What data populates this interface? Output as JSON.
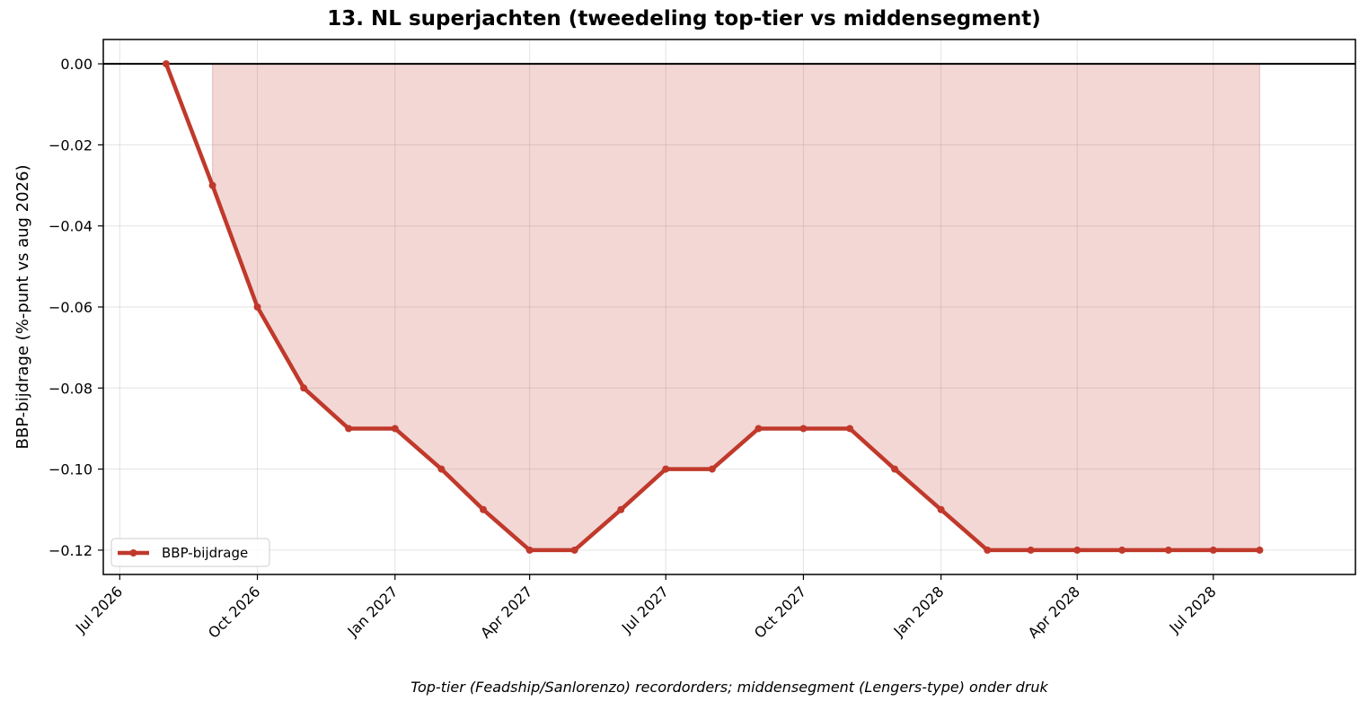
{
  "chart_data": {
    "type": "area",
    "title": "13. NL superjachten (tweedeling top-tier vs middensegment)",
    "xlabel": "Top-tier (Feadship/Sanlorenzo) recordorders; middensegment (Lengers-type) onder druk",
    "ylabel": "BBP-bijdrage (%-punt vs aug 2026)",
    "x": [
      "2026-08",
      "2026-09",
      "2026-10",
      "2026-11",
      "2026-12",
      "2027-01",
      "2027-02",
      "2027-03",
      "2027-04",
      "2027-05",
      "2027-06",
      "2027-07",
      "2027-08",
      "2027-09",
      "2027-10",
      "2027-11",
      "2027-12",
      "2028-01",
      "2028-02",
      "2028-03",
      "2028-04",
      "2028-05",
      "2028-06",
      "2028-07",
      "2028-08"
    ],
    "series": [
      {
        "name": "BBP-bijdrage",
        "values": [
          0.0,
          -0.03,
          -0.06,
          -0.08,
          -0.09,
          -0.09,
          -0.1,
          -0.11,
          -0.12,
          -0.12,
          -0.11,
          -0.1,
          -0.1,
          -0.09,
          -0.09,
          -0.09,
          -0.1,
          -0.11,
          -0.12,
          -0.12,
          -0.12,
          -0.12,
          -0.12,
          -0.12,
          -0.12
        ],
        "color": "#c0392b"
      }
    ],
    "fill": {
      "from": "2026-09",
      "to": "2028-08",
      "baseline": 0,
      "color": "#c0392b",
      "opacity": 0.2
    },
    "xlim": [
      "2026-06-20",
      "2028-10-04"
    ],
    "ylim": [
      -0.126,
      0.006
    ],
    "x_ticks": [
      "2026-07",
      "2026-10",
      "2027-01",
      "2027-04",
      "2027-07",
      "2027-10",
      "2028-01",
      "2028-04",
      "2028-07"
    ],
    "x_tick_labels": [
      "Jul 2026",
      "Oct 2026",
      "Jan 2027",
      "Apr 2027",
      "Jul 2027",
      "Oct 2027",
      "Jan 2028",
      "Apr 2028",
      "Jul 2028"
    ],
    "y_ticks": [
      0.0,
      -0.02,
      -0.04,
      -0.06,
      -0.08,
      -0.1,
      -0.12
    ],
    "y_tick_labels": [
      "0.00",
      "−0.02",
      "−0.04",
      "−0.06",
      "−0.08",
      "−0.10",
      "−0.12"
    ],
    "zero_line": true,
    "grid": true,
    "legend": {
      "position": "lower-left",
      "entries": [
        "BBP-bijdrage"
      ]
    }
  }
}
